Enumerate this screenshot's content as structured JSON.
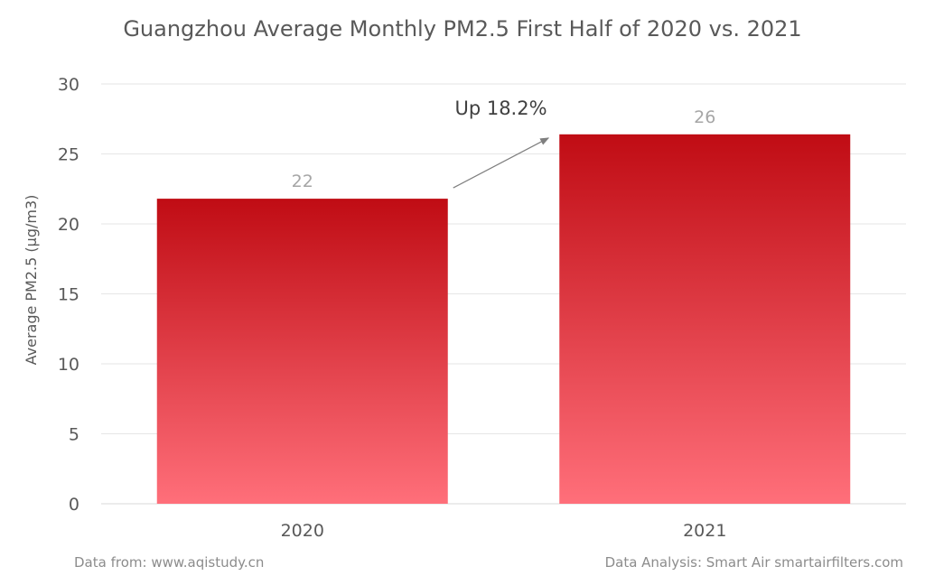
{
  "chart_data": {
    "type": "bar",
    "title": "Guangzhou Average Monthly PM2.5 First Half of 2020 vs. 2021",
    "ylabel": "Average PM2.5 (μg/m3)",
    "xlabel": "",
    "categories": [
      "2020",
      "2021"
    ],
    "values": [
      21.8,
      26.4
    ],
    "data_labels": [
      "22",
      "26"
    ],
    "ylim": [
      0,
      30
    ],
    "yticks": [
      0,
      5,
      10,
      15,
      20,
      25,
      30
    ],
    "grid": true,
    "legend": "none",
    "bar_color_top": "#c00c14",
    "bar_color_bottom": "#ff6f7a",
    "annotation": {
      "text": "Up 18.2%"
    }
  },
  "footer": {
    "source": "Data from: www.aqistudy.cn",
    "credit": "Data Analysis: Smart Air smartairfilters.com"
  }
}
